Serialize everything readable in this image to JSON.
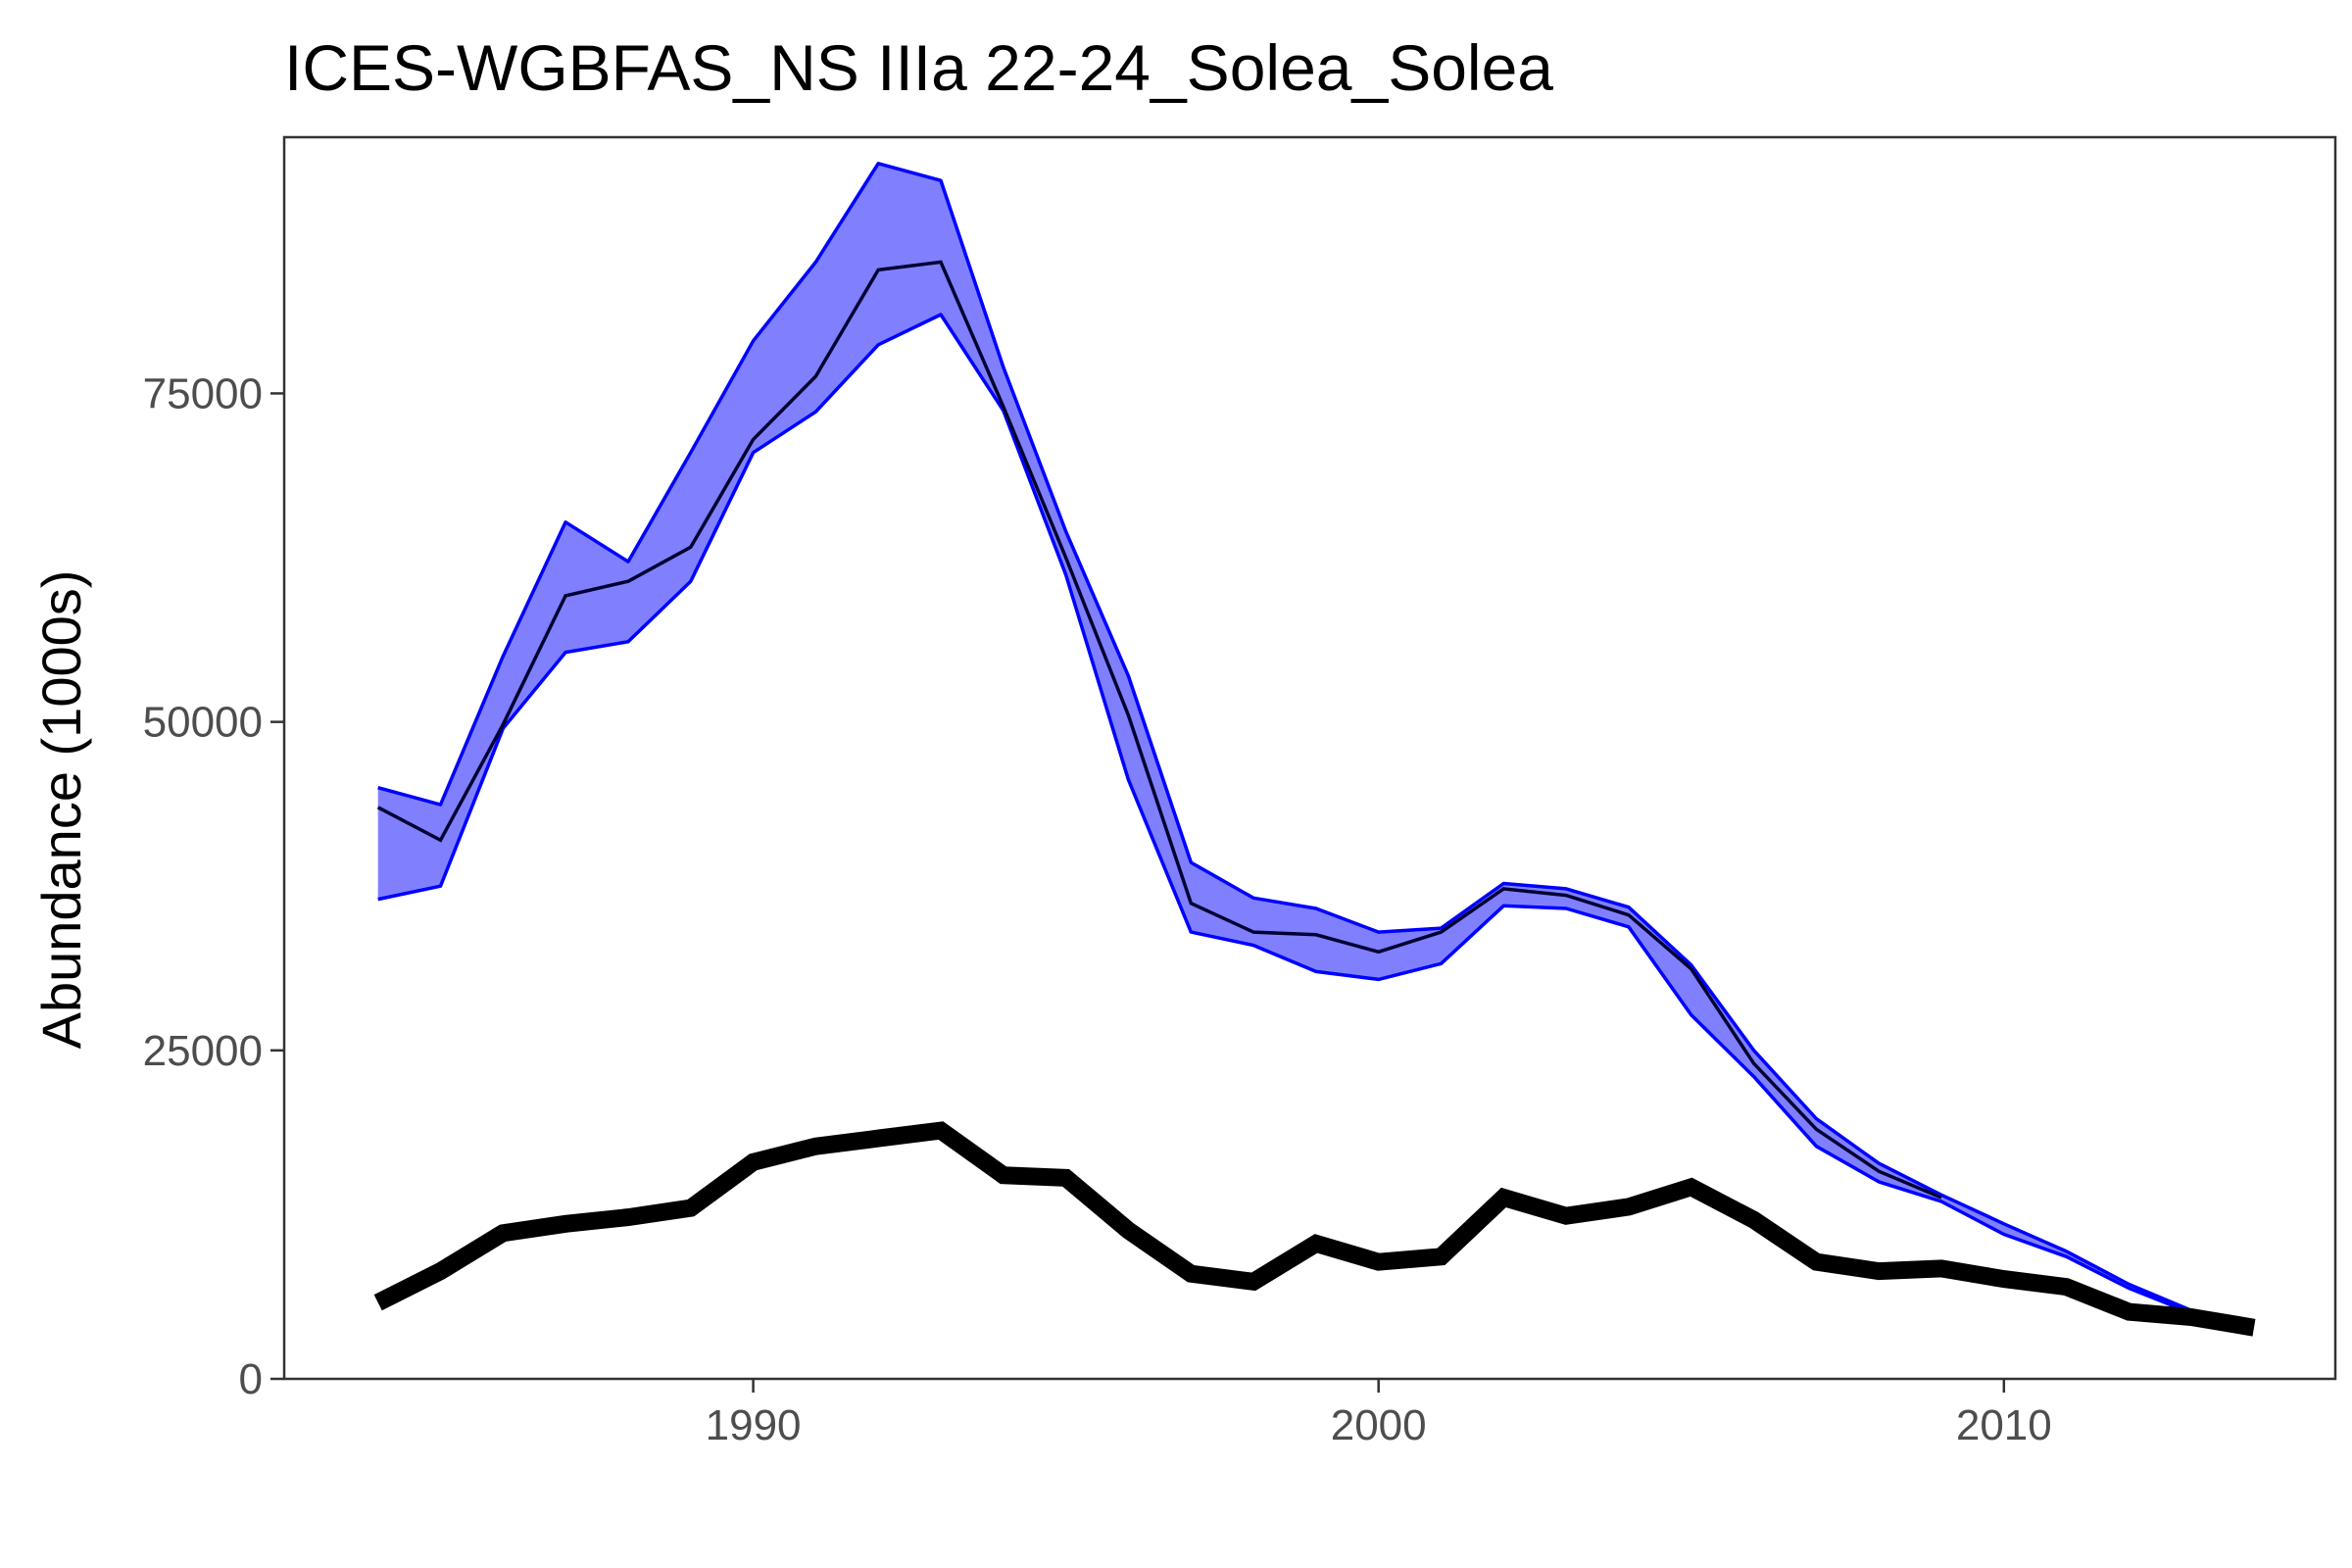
{
  "chart_data": {
    "type": "line",
    "title": "ICES-WGBFAS_NS IIIa 22-24_Solea_Solea",
    "xlabel": "",
    "ylabel": "Abundance (1000s)",
    "xlim": [
      1982.5,
      2015.3
    ],
    "ylim": [
      0,
      94500
    ],
    "x_ticks": [
      1990,
      2000,
      2010
    ],
    "y_ticks": [
      0,
      25000,
      50000,
      75000
    ],
    "grid": false,
    "legend": "none",
    "years": [
      1984,
      1985,
      1986,
      1987,
      1988,
      1989,
      1990,
      1991,
      1992,
      1993,
      1994,
      1995,
      1996,
      1997,
      1998,
      1999,
      2000,
      2001,
      2002,
      2003,
      2004,
      2005,
      2006,
      2007,
      2008,
      2009,
      2010,
      2011,
      2012,
      2013,
      2014
    ],
    "series": [
      {
        "role": "band",
        "upper": [
          45000,
          43700,
          55000,
          65200,
          62200,
          70500,
          79000,
          85000,
          92500,
          91200,
          77000,
          64500,
          53500,
          39300,
          36600,
          35800,
          34000,
          34300,
          37700,
          37300,
          35900,
          31500,
          25000,
          19800,
          16400,
          14000,
          11800,
          9700,
          7200,
          5200,
          null
        ],
        "lower": [
          36500,
          37500,
          49500,
          55300,
          56100,
          60700,
          70500,
          73600,
          78700,
          81000,
          73700,
          61200,
          45600,
          34000,
          33000,
          31000,
          30400,
          31600,
          36000,
          35800,
          34400,
          27700,
          23000,
          17700,
          15000,
          13500,
          11000,
          9300,
          6900,
          5000,
          null
        ],
        "fill_color": "#8080ff",
        "line_color": "#0000ff"
      },
      {
        "role": "line",
        "values": [
          43500,
          41000,
          49800,
          59600,
          60700,
          63300,
          71500,
          76300,
          84400,
          85000,
          74000,
          62500,
          50500,
          36200,
          34000,
          33800,
          32500,
          34000,
          37300,
          36800,
          35300,
          31200,
          24000,
          19000,
          15800,
          13800,
          null,
          null,
          null,
          null,
          null
        ],
        "color": "#000033"
      },
      {
        "role": "line",
        "values": [
          5800,
          8200,
          11100,
          11800,
          12300,
          13000,
          16500,
          17700,
          18300,
          18900,
          15500,
          15300,
          11300,
          8000,
          7400,
          10300,
          8900,
          9300,
          13800,
          12400,
          13100,
          14600,
          12100,
          8900,
          8200,
          8400,
          7600,
          7000,
          5100,
          4700,
          3900
        ],
        "color": "#000000"
      }
    ]
  }
}
